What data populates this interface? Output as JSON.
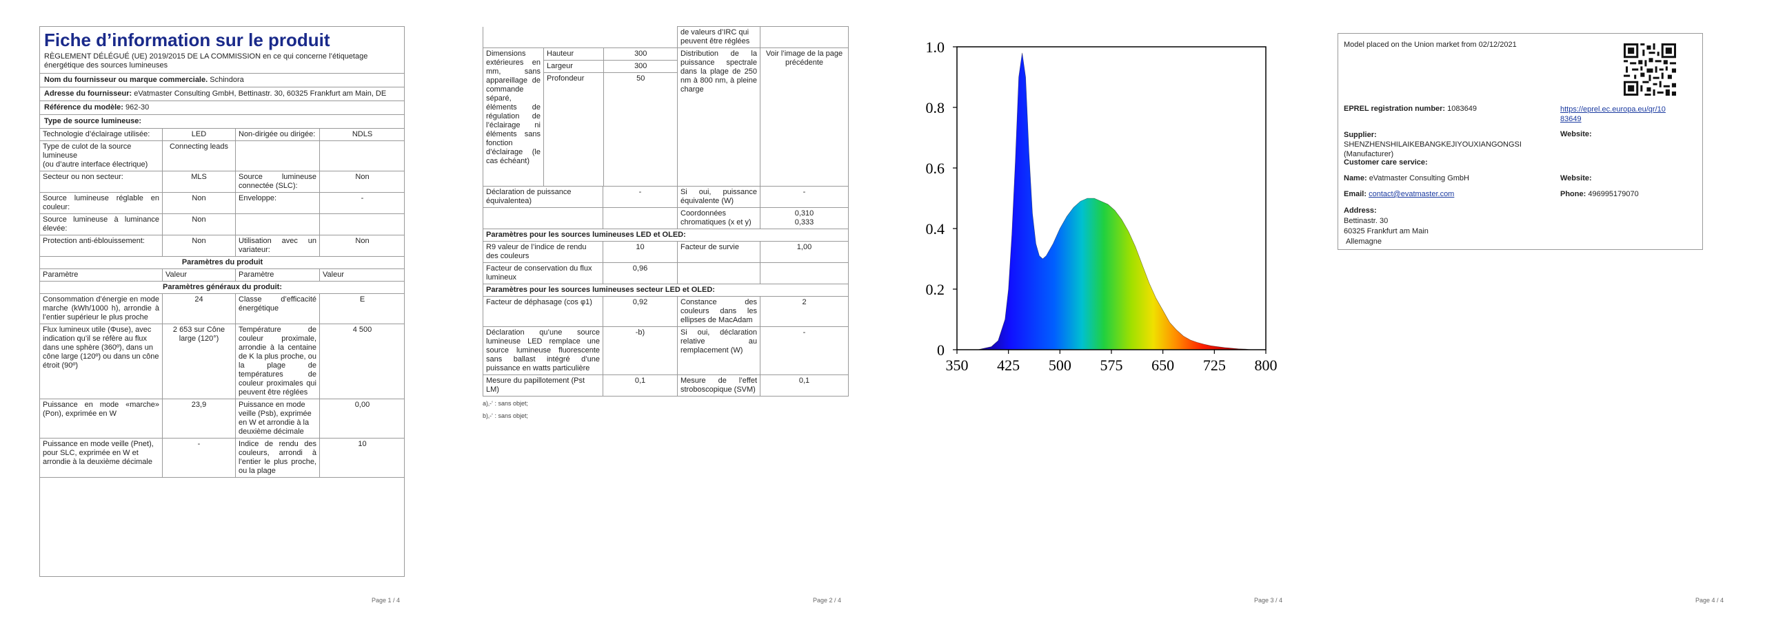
{
  "page1": {
    "title": "Fiche d’information sur le produit",
    "regulation": "RÈGLEMENT DÉLÉGUÉ (UE) 2019/2015 DE LA COMMISSION en ce qui concerne l’étiquetage énergétique des sources lumineuses",
    "supplier_label": "Nom du fournisseur ou marque commerciale.",
    "supplier_value": "Schindora",
    "address_label": "Adresse du fournisseur:",
    "address_value": "eVatmaster Consulting GmbH, Bettinastr. 30, 60325 Frankfurt am Main, DE",
    "model_label": "Référence du modèle:",
    "model_value": "962-30",
    "source_type": "Type de source lumineuse:",
    "rows": [
      [
        "Technologie d’éclairage utilisée:",
        "LED",
        "Non-dirigée ou dirigée:",
        "NDLS"
      ],
      [
        "Type de culot de la source lumineuse\n(ou d’autre interface électrique)",
        "Connecting leads",
        "",
        ""
      ],
      [
        "Secteur ou non secteur:",
        "MLS",
        "Source lumineuse connectée (SLC):",
        "Non"
      ],
      [
        "Source lumineuse réglable en couleur:",
        "Non",
        "Enveloppe:",
        "-"
      ],
      [
        "Source lumineuse à luminance élevée:",
        "Non",
        "",
        ""
      ],
      [
        "Protection anti-éblouissement:",
        "Non",
        "Utilisation avec un variateur:",
        "Non"
      ]
    ],
    "params_title": "Paramètres du produit",
    "param_headers": [
      "Paramètre",
      "Valeur",
      "Paramètre",
      "Valeur"
    ],
    "general_title": "Paramètres généraux du produit:",
    "general_rows": [
      [
        "Consommation d’énergie en mode marche (kWh/1000 h), arrondie à l’entier supérieur le plus proche",
        "24",
        "Classe d’efficacité énergétique",
        "E"
      ],
      [
        "Flux lumineux utile (Φuse), avec indication qu’il se réfère au flux dans une sphère (360º), dans un cône large (120º) ou dans un cône étroit (90º)",
        "2 653 sur Cône large (120°)",
        "Température de couleur proximale, arrondie à la centaine de K la plus proche, ou la plage de températures de couleur proximales qui peuvent être réglées",
        "4 500"
      ],
      [
        "Puissance en mode «marche» (Pon), exprimée en W",
        "23,9",
        "Puissance en mode veille (Psb), exprimée en W et arrondie à la deuxième décimale",
        "0,00"
      ],
      [
        "Puissance en mode veille (Pnet), pour SLC, exprimée en W et arrondie à la deuxième décimale",
        "-",
        "Indice de rendu des couleurs, arrondi à l’entier le plus proche, ou la plage",
        "10"
      ]
    ],
    "page_number": "Page 1 / 4"
  },
  "page2": {
    "cri_continued": "de valeurs d’IRC qui peuvent être réglées",
    "dimensions_label": "Dimensions extérieures en mm, sans appareillage de commande séparé, éléments de régulation de l’éclairage ni éléments sans fonction d’éclairage (le cas échéant)",
    "dims": [
      [
        "Hauteur",
        "300"
      ],
      [
        "Largeur",
        "300"
      ],
      [
        "Profondeur",
        "50"
      ]
    ],
    "spectral_label": "Distribution de la puissance spectrale dans la plage de 250 nm à 800 nm, à pleine charge",
    "spectral_value": "Voir l’image de la page précédente",
    "equiv_label": "Déclaration de puissance équivalentea)",
    "equiv_value": "-",
    "equiv_q": "Si oui, puissance équivalente (W)",
    "equiv_q_value": "-",
    "chroma_label": "Coordonnées chromatiques (x et y)",
    "chroma_x": "0,310",
    "chroma_y": "0,333",
    "led_title": "Paramètres pour les sources lumineuses LED et OLED:",
    "r9_label": "R9 valeur de l’indice de rendu des couleurs",
    "r9_value": "10",
    "survival_label": "Facteur de survie",
    "survival_value": "1,00",
    "maint_label": "Facteur de conservation du flux lumineux",
    "maint_value": "0,96",
    "mains_title": "Paramètres pour les sources lumineuses secteur LED et OLED:",
    "phase_label": "Facteur de déphasage (cos φ1)",
    "phase_value": "0,92",
    "macadam_label": "Constance des couleurs dans les ellipses de MacAdam",
    "macadam_value": "2",
    "replace_label": "Déclaration qu’une source lumineuse LED remplace une source lumineuse fluorescente sans ballast intégré d’une puissance en watts particulière",
    "replace_value": "-b)",
    "replace_q": "Si oui, déclaration relative au remplacement (W)",
    "replace_q_value": "-",
    "flicker_label": "Mesure du papillotement (Pst LM)",
    "flicker_value": "0,1",
    "strobo_label": "Mesure de l’effet stroboscopique (SVM)",
    "strobo_value": "0,1",
    "footnote_a": "a)‚-‘ : sans objet;",
    "footnote_b": "b)‚-‘ : sans objet;",
    "page_number": "Page 2 / 4"
  },
  "page3": {
    "page_number": "Page 3 / 4"
  },
  "chart_data": {
    "type": "area",
    "xlim": [
      350,
      800
    ],
    "ylim": [
      0,
      1.0
    ],
    "x_ticks": [
      "350",
      "425",
      "500",
      "575",
      "650",
      "725",
      "800"
    ],
    "y_ticks": [
      "0",
      "0.2",
      "0.4",
      "0.6",
      "0.8",
      "1.0"
    ],
    "x": [
      380,
      400,
      410,
      420,
      425,
      430,
      435,
      440,
      445,
      450,
      455,
      460,
      465,
      470,
      475,
      480,
      490,
      500,
      510,
      520,
      530,
      540,
      550,
      560,
      570,
      580,
      590,
      600,
      610,
      620,
      630,
      640,
      650,
      660,
      670,
      680,
      690,
      700,
      710,
      720,
      730,
      740,
      750,
      760,
      770,
      780
    ],
    "y": [
      0.0,
      0.01,
      0.03,
      0.1,
      0.2,
      0.38,
      0.62,
      0.9,
      0.98,
      0.9,
      0.65,
      0.45,
      0.35,
      0.31,
      0.3,
      0.31,
      0.35,
      0.4,
      0.44,
      0.47,
      0.49,
      0.5,
      0.5,
      0.49,
      0.48,
      0.46,
      0.43,
      0.39,
      0.34,
      0.28,
      0.22,
      0.17,
      0.13,
      0.09,
      0.065,
      0.045,
      0.032,
      0.024,
      0.018,
      0.013,
      0.01,
      0.007,
      0.005,
      0.003,
      0.002,
      0.0
    ]
  },
  "page4": {
    "placed": "Model placed on the Union market from 02/12/2021",
    "reg_label": "EPREL registration number:",
    "reg_value": "1083649",
    "link1": "https://eprel.ec.europa.eu/qr/10",
    "link2": "83649",
    "supplier_label": "Supplier:",
    "supplier_value": "SHENZHENSHILAIKEBANGKEJIYOUXIANGONGSI",
    "supplier_role": "(Manufacturer)",
    "website_label": "Website:",
    "care_title": "Customer care service:",
    "name_label": "Name:",
    "name_value": "eVatmaster Consulting GmbH",
    "website2_label": "Website:",
    "email_label": "Email:",
    "email_value": "contact@evatmaster.com",
    "phone_label": "Phone:",
    "phone_value": "496995179070",
    "address_label": "Address:",
    "addr1": "Bettinastr. 30",
    "addr2": "60325 Frankfurt am Main",
    "addr3": "Allemagne",
    "page_number": "Page 4 / 4"
  }
}
